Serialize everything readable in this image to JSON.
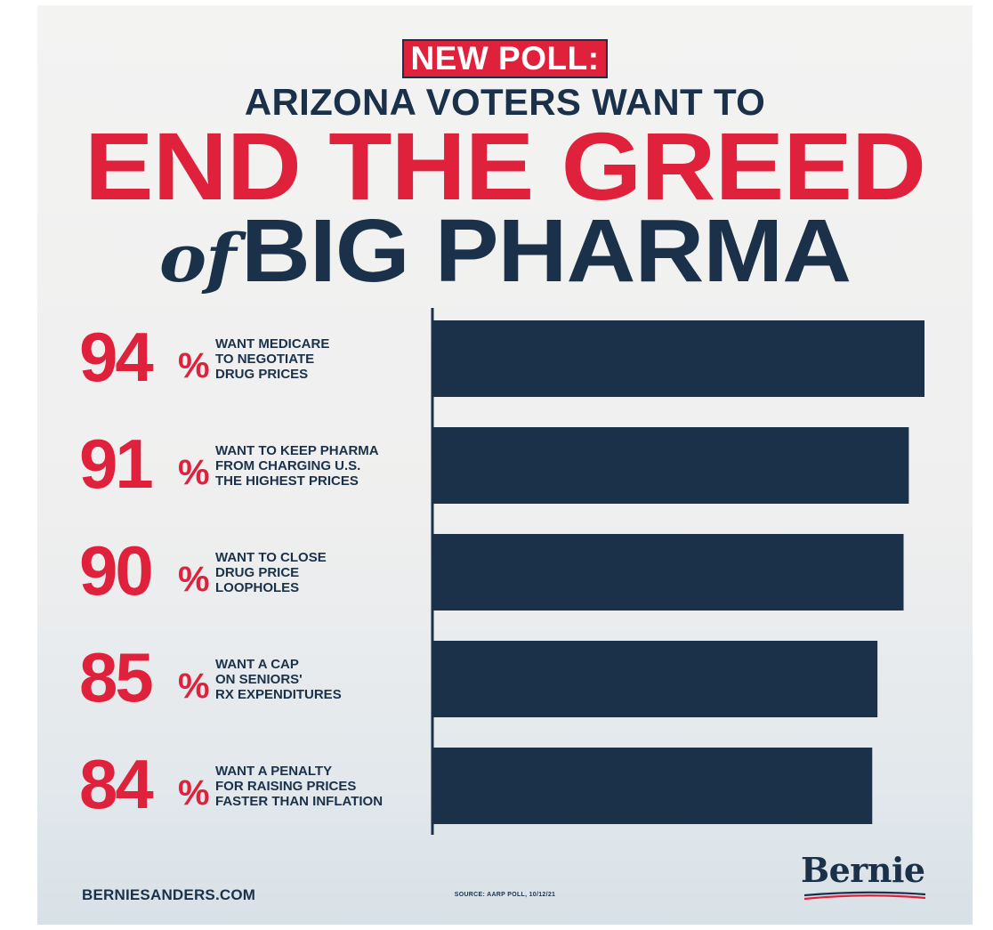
{
  "header": {
    "badge": "NEW POLL:",
    "subtitle": "ARIZONA VOTERS WANT TO",
    "headline_line1": "END THE GREED",
    "headline_of": "of",
    "headline_line2": "BIG PHARMA"
  },
  "colors": {
    "red": "#e0213b",
    "navy": "#1b314a",
    "background": "#f3f3f2"
  },
  "chart_data": {
    "type": "bar",
    "orientation": "horizontal",
    "unit": "%",
    "xlim": [
      0,
      100
    ],
    "grid": false,
    "categories": [
      "WANT MEDICARE TO NEGOTIATE DRUG PRICES",
      "WANT TO KEEP PHARMA FROM CHARGING U.S. THE HIGHEST PRICES",
      "WANT TO CLOSE DRUG PRICE LOOPHOLES",
      "WANT A CAP ON SENIORS' RX EXPENDITURES",
      "WANT A PENALTY FOR RAISING PRICES FASTER THAN INFLATION"
    ],
    "values": [
      94,
      91,
      90,
      85,
      84
    ],
    "rows": [
      {
        "value": 94,
        "value_label": "94",
        "lines": [
          "WANT MEDICARE",
          "TO NEGOTIATE",
          "DRUG PRICES"
        ]
      },
      {
        "value": 91,
        "value_label": "91",
        "lines": [
          "WANT TO KEEP PHARMA",
          "FROM CHARGING U.S.",
          "THE HIGHEST PRICES"
        ]
      },
      {
        "value": 90,
        "value_label": "90",
        "lines": [
          "WANT TO CLOSE",
          "DRUG PRICE",
          "LOOPHOLES"
        ]
      },
      {
        "value": 85,
        "value_label": "85",
        "lines": [
          "WANT A CAP",
          "ON SENIORS'",
          "RX EXPENDITURES"
        ]
      },
      {
        "value": 84,
        "value_label": "84",
        "lines": [
          "WANT A PENALTY",
          "FOR RAISING PRICES",
          "FASTER THAN INFLATION"
        ]
      }
    ],
    "bar_color": "#1b314a",
    "value_color": "#e0213b"
  },
  "footer": {
    "website": "BERNIESANDERS.COM",
    "source": "SOURCE: AARP POLL, 10/12/21",
    "logo_text": "Bernie"
  }
}
